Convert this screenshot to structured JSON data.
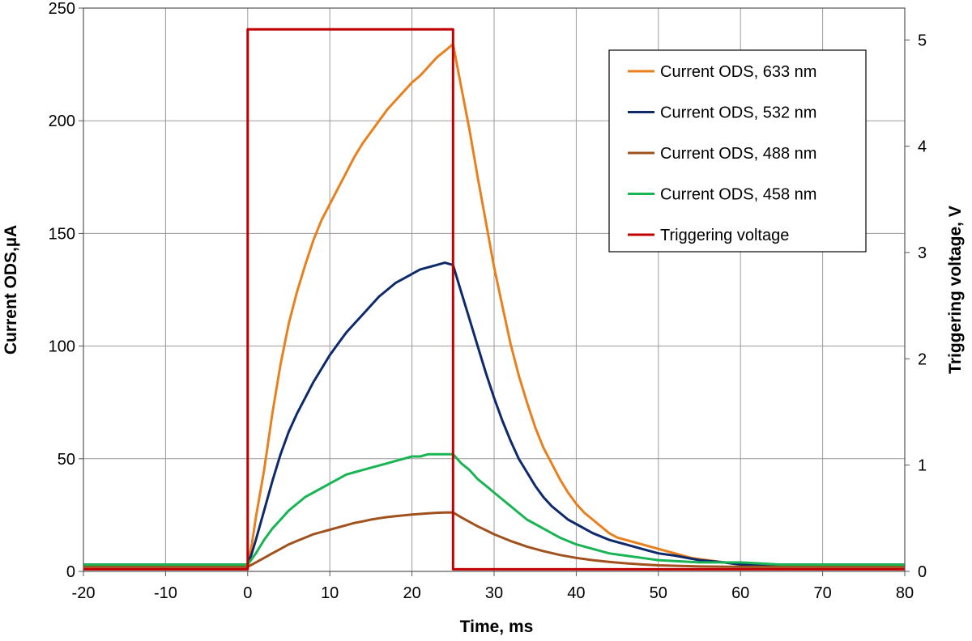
{
  "chart_data": {
    "type": "line",
    "xlabel": "Time, ms",
    "ylabel": "Current ODS,µA",
    "y2label": "Triggering voltage, V",
    "xlim": [
      -20,
      80
    ],
    "ylim": [
      0,
      250
    ],
    "y2lim": [
      0,
      5.3
    ],
    "x_ticks": [
      "-20",
      "-10",
      "0",
      "10",
      "20",
      "30",
      "40",
      "50",
      "60",
      "70",
      "80"
    ],
    "y_ticks": [
      "0",
      "50",
      "100",
      "150",
      "200",
      "250"
    ],
    "y2_ticks": [
      "0",
      "1",
      "2",
      "3",
      "4",
      "5"
    ],
    "grid": true,
    "legend_position": "top-right",
    "series": [
      {
        "name": "Current ODS, 633 nm",
        "color": "#E8801E",
        "axis": "left",
        "x": [
          -20,
          -10,
          0,
          0.5,
          1,
          2,
          3,
          4,
          5,
          6,
          7,
          8,
          9,
          10,
          11,
          12,
          13,
          14,
          15,
          16,
          17,
          18,
          19,
          20,
          21,
          22,
          23,
          24,
          25,
          26,
          27,
          28,
          29,
          30,
          31,
          32,
          33,
          34,
          35,
          36,
          37,
          38,
          39,
          40,
          41,
          42,
          43,
          44,
          45,
          46,
          48,
          50,
          52,
          54,
          56,
          58,
          60,
          62,
          63,
          65,
          70,
          75,
          80
        ],
        "y": [
          3,
          3,
          3,
          12,
          24,
          45,
          70,
          92,
          110,
          124,
          136,
          147,
          156,
          163,
          170,
          177,
          184,
          190,
          195,
          200,
          205,
          209,
          213,
          217,
          220,
          224,
          228,
          231,
          234,
          215,
          196,
          175,
          155,
          135,
          118,
          101,
          87,
          75,
          64,
          55,
          48,
          41,
          35,
          30,
          26,
          23,
          20,
          17,
          15,
          14,
          12,
          10,
          8,
          6,
          5,
          4,
          3,
          3,
          3,
          3,
          3,
          3,
          3
        ]
      },
      {
        "name": "Current ODS, 532 nm",
        "color": "#0E2A6B",
        "axis": "left",
        "x": [
          -20,
          -10,
          0,
          0.5,
          1,
          2,
          3,
          4,
          5,
          6,
          7,
          8,
          9,
          10,
          11,
          12,
          13,
          14,
          15,
          16,
          17,
          18,
          19,
          20,
          21,
          22,
          23,
          24,
          25,
          26,
          27,
          28,
          29,
          30,
          31,
          32,
          33,
          34,
          35,
          36,
          37,
          38,
          39,
          40,
          42,
          44,
          46,
          48,
          50,
          52,
          55,
          58,
          60,
          65,
          70,
          75,
          80
        ],
        "y": [
          3,
          3,
          3,
          8,
          14,
          27,
          40,
          52,
          62,
          70,
          77,
          84,
          90,
          96,
          101,
          106,
          110,
          114,
          118,
          122,
          125,
          128,
          130,
          132,
          134,
          135,
          136,
          137,
          136,
          124,
          112,
          100,
          88,
          77,
          67,
          58,
          50,
          44,
          38,
          33,
          29,
          26,
          23,
          21,
          17,
          14,
          12,
          10,
          8,
          7,
          5,
          4,
          3,
          3,
          3,
          3,
          3
        ]
      },
      {
        "name": "Current ODS, 488 nm",
        "color": "#A0521E",
        "axis": "left",
        "x": [
          -20,
          -10,
          0,
          1,
          2,
          3,
          4,
          5,
          6,
          7,
          8,
          9,
          10,
          11,
          12,
          13,
          14,
          15,
          16,
          17,
          18,
          19,
          20,
          21,
          22,
          23,
          24,
          25,
          26,
          27,
          28,
          29,
          30,
          32,
          34,
          36,
          38,
          40,
          42,
          44,
          46,
          48,
          50,
          55,
          60,
          65,
          70,
          75,
          80
        ],
        "y": [
          2,
          2,
          2,
          4,
          6,
          8,
          10,
          12,
          13.5,
          15,
          16.5,
          17.5,
          18.5,
          19.5,
          20.5,
          21.5,
          22.2,
          23,
          23.6,
          24.1,
          24.5,
          24.9,
          25.2,
          25.5,
          25.8,
          26,
          26.1,
          26.2,
          24,
          22,
          20,
          18.3,
          16.5,
          13.5,
          11,
          9,
          7.3,
          6,
          5,
          4.2,
          3.6,
          3.1,
          2.7,
          2.2,
          2,
          2,
          2,
          2,
          2
        ]
      },
      {
        "name": "Current ODS, 458 nm",
        "color": "#19B454",
        "axis": "left",
        "x": [
          -20,
          -10,
          0,
          1,
          2,
          3,
          4,
          5,
          6,
          7,
          8,
          9,
          10,
          11,
          12,
          13,
          14,
          15,
          16,
          17,
          18,
          19,
          20,
          21,
          22,
          23,
          24,
          25,
          26,
          27,
          28,
          29,
          30,
          31,
          32,
          33,
          34,
          35,
          36,
          37,
          38,
          40,
          42,
          44,
          46,
          48,
          50,
          55,
          60,
          65,
          70,
          75,
          80
        ],
        "y": [
          3,
          3,
          3,
          8,
          14,
          19,
          23,
          27,
          30,
          33,
          35,
          37,
          39,
          41,
          43,
          44,
          45,
          46,
          47,
          48,
          49,
          50,
          51,
          51,
          52,
          52,
          52,
          52,
          48,
          45,
          41,
          38,
          35,
          32,
          29,
          26,
          23,
          21,
          19,
          17,
          15,
          12,
          10,
          8,
          7,
          6,
          5,
          4,
          4,
          3,
          3,
          3,
          3
        ]
      },
      {
        "name": "Triggering voltage",
        "color": "#C00000",
        "axis": "right",
        "x": [
          -20,
          0,
          0,
          25,
          25,
          80
        ],
        "y": [
          0.02,
          0.02,
          5.1,
          5.1,
          0.02,
          0.02
        ]
      }
    ]
  }
}
